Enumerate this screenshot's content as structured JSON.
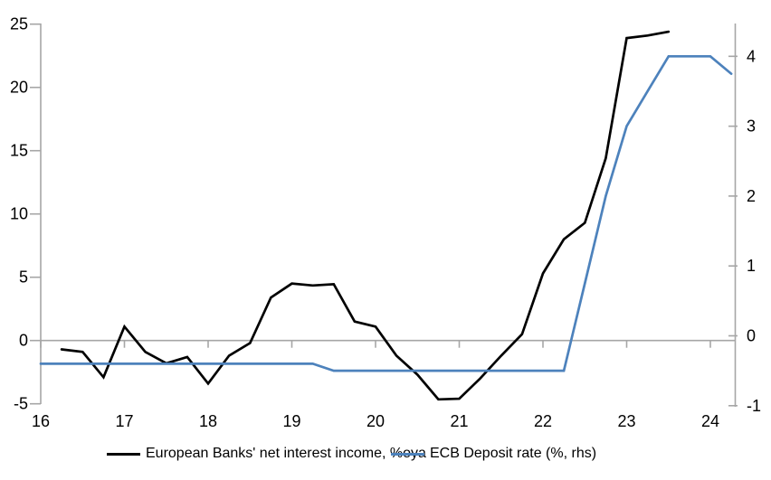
{
  "chart_data": {
    "type": "line",
    "title": "",
    "xlabel": "",
    "ylabel_left": "",
    "ylabel_right": "",
    "legend_position": "bottom",
    "grid": "zero-line-only",
    "x_axis": {
      "ticks": [
        16,
        17,
        18,
        19,
        20,
        21,
        22,
        23,
        24
      ],
      "range": [
        16,
        24.3
      ]
    },
    "left_axis": {
      "ticks": [
        25,
        20,
        15,
        10,
        5,
        0,
        -5
      ],
      "range": [
        -5,
        25
      ]
    },
    "right_axis": {
      "ticks": [
        4,
        3,
        2,
        1,
        0,
        -1
      ],
      "range": [
        -1.07,
        4.54
      ]
    },
    "series": [
      {
        "name": "European Banks' net interest income, %oya",
        "axis": "left",
        "color": "#000000",
        "points": [
          [
            16.25,
            -0.7
          ],
          [
            16.5,
            -0.9
          ],
          [
            16.75,
            -2.9
          ],
          [
            17.0,
            1.1
          ],
          [
            17.25,
            -0.9
          ],
          [
            17.5,
            -1.8
          ],
          [
            17.75,
            -1.3
          ],
          [
            18.0,
            -3.4
          ],
          [
            18.25,
            -1.2
          ],
          [
            18.5,
            -0.2
          ],
          [
            18.75,
            3.4
          ],
          [
            19.0,
            4.5
          ],
          [
            19.25,
            4.35
          ],
          [
            19.5,
            4.45
          ],
          [
            19.75,
            1.5
          ],
          [
            20.0,
            1.1
          ],
          [
            20.25,
            -1.2
          ],
          [
            20.5,
            -2.7
          ],
          [
            20.75,
            -4.65
          ],
          [
            21.0,
            -4.6
          ],
          [
            21.25,
            -3.0
          ],
          [
            21.5,
            -1.2
          ],
          [
            21.75,
            0.5
          ],
          [
            22.0,
            5.3
          ],
          [
            22.25,
            8.0
          ],
          [
            22.5,
            9.3
          ],
          [
            22.75,
            14.4
          ],
          [
            23.0,
            23.9
          ],
          [
            23.25,
            24.1
          ],
          [
            23.5,
            24.4
          ]
        ]
      },
      {
        "name": "ECB Deposit rate (%, rhs)",
        "axis": "right",
        "color": "#4d82bc",
        "points": [
          [
            16.0,
            -0.4
          ],
          [
            16.25,
            -0.4
          ],
          [
            16.5,
            -0.4
          ],
          [
            16.75,
            -0.4
          ],
          [
            17.0,
            -0.4
          ],
          [
            17.25,
            -0.4
          ],
          [
            17.5,
            -0.4
          ],
          [
            17.75,
            -0.4
          ],
          [
            18.0,
            -0.4
          ],
          [
            18.25,
            -0.4
          ],
          [
            18.5,
            -0.4
          ],
          [
            18.75,
            -0.4
          ],
          [
            19.0,
            -0.4
          ],
          [
            19.25,
            -0.4
          ],
          [
            19.5,
            -0.5
          ],
          [
            19.75,
            -0.5
          ],
          [
            20.0,
            -0.5
          ],
          [
            20.25,
            -0.5
          ],
          [
            20.5,
            -0.5
          ],
          [
            20.75,
            -0.5
          ],
          [
            21.0,
            -0.5
          ],
          [
            21.25,
            -0.5
          ],
          [
            21.5,
            -0.5
          ],
          [
            21.75,
            -0.5
          ],
          [
            22.0,
            -0.5
          ],
          [
            22.25,
            -0.5
          ],
          [
            22.5,
            0.75
          ],
          [
            22.75,
            2.0
          ],
          [
            23.0,
            3.0
          ],
          [
            23.25,
            3.5
          ],
          [
            23.5,
            4.0
          ],
          [
            23.75,
            4.0
          ],
          [
            24.0,
            4.0
          ],
          [
            24.25,
            3.75
          ]
        ]
      }
    ],
    "colors": {
      "axis_line": "#a6a6a6",
      "zero_gridline": "#a6a6a6",
      "tick_label": "#000000"
    }
  }
}
